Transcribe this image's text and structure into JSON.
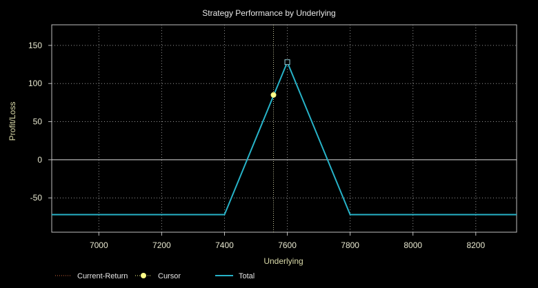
{
  "chart_data": {
    "type": "line",
    "title": "Strategy Performance by Underlying",
    "xlabel": "Underlying",
    "ylabel": "Profit/Loss",
    "xlim": [
      6850,
      8330
    ],
    "ylim": [
      -95,
      177
    ],
    "x_ticks": [
      7000,
      7200,
      7400,
      7600,
      7800,
      8000,
      8200
    ],
    "y_ticks": [
      150,
      100,
      50,
      0,
      -50
    ],
    "grid": true,
    "legend_placement": "bottom",
    "series": [
      {
        "name": "Total",
        "color": "#27b3c8",
        "x": [
          6850,
          7400,
          7600,
          7800,
          8330
        ],
        "y": [
          -72,
          -72,
          128,
          -72,
          -72
        ]
      }
    ],
    "peak_marker": {
      "x": 7600,
      "y": 128
    },
    "cursor": {
      "name": "Cursor",
      "x": 7556,
      "y": 85,
      "color": "#ffff88"
    },
    "current_return": {
      "name": "Current-Return",
      "x": 7556,
      "color": "#d96a3c"
    },
    "legend": [
      {
        "name": "Current-Return",
        "style": "dotted",
        "color": "#d96a3c"
      },
      {
        "name": "Cursor",
        "style": "marker",
        "color": "#ffff88"
      },
      {
        "name": "Total",
        "style": "line",
        "color": "#27b3c8"
      }
    ]
  }
}
